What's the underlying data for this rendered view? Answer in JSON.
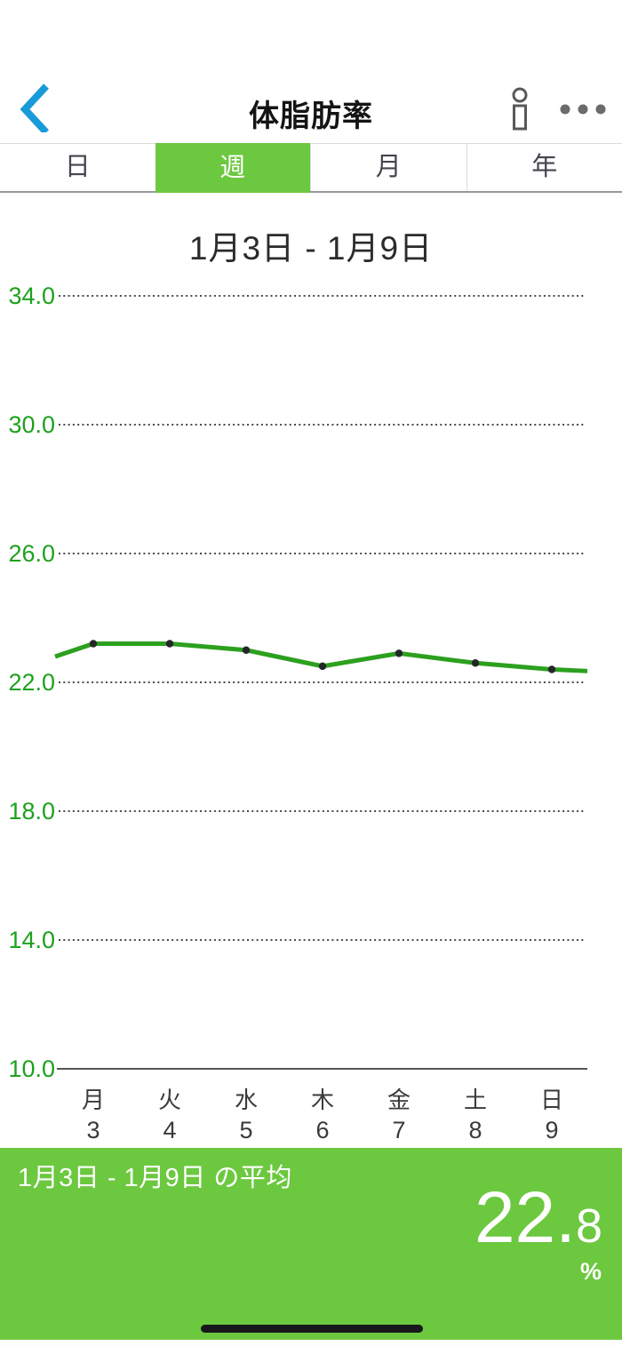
{
  "nav": {
    "title": "体脂肪率",
    "back_icon": "chevron-left",
    "profile_icon": "person-body",
    "more_icon": "ellipsis"
  },
  "tabs": [
    {
      "label": "日",
      "selected": false
    },
    {
      "label": "週",
      "selected": true
    },
    {
      "label": "月",
      "selected": false
    },
    {
      "label": "年",
      "selected": false
    }
  ],
  "chart_data": {
    "type": "line",
    "title": "1月3日 - 1月9日",
    "categories_weekday": [
      "月",
      "火",
      "水",
      "木",
      "金",
      "土",
      "日"
    ],
    "categories_date": [
      "3",
      "4",
      "5",
      "6",
      "7",
      "8",
      "9"
    ],
    "values": [
      23.2,
      23.2,
      23.0,
      22.5,
      22.9,
      22.6,
      22.4
    ],
    "edge_left_value": 22.8,
    "edge_right_value": 22.35,
    "yticks": [
      "34.0",
      "30.0",
      "26.0",
      "22.0",
      "18.0",
      "14.0",
      "10.0"
    ],
    "ylim": [
      10.0,
      34.0
    ],
    "grid": "dotted horizontal, solid baseline at 10.0",
    "legend": "none",
    "line_color": "#2ca01e",
    "point_color": "#26262a",
    "tick_label_color": "#1ea11e",
    "grid_dot_color": "#4a4a4f",
    "axis_line_color": "#55555a",
    "x_label_color": "#3a3a3e"
  },
  "footer": {
    "average_label": "1月3日 - 1月9日 の平均",
    "value_int": "22.",
    "value_dec": "8",
    "unit": "%"
  },
  "colors": {
    "accent_green": "#6cc83f",
    "nav_blue": "#189bd8",
    "icon_gray": "#58585a",
    "dots_gray": "#6b6b6b"
  }
}
